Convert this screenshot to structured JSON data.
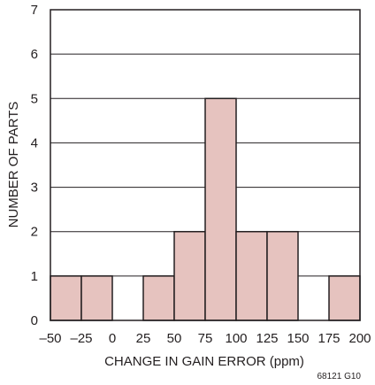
{
  "chart_data": {
    "type": "bar",
    "title": "",
    "xlabel": "CHANGE IN GAIN ERROR (ppm)",
    "ylabel": "NUMBER OF PARTS",
    "bin_edges": [
      -50,
      -25,
      0,
      25,
      50,
      75,
      100,
      125,
      150,
      175,
      200
    ],
    "categories": [
      "-50 to -25",
      "-25 to 0",
      "0 to 25",
      "25 to 50",
      "50 to 75",
      "75 to 100",
      "100 to 125",
      "125 to 150",
      "150 to 175",
      "175 to 200"
    ],
    "values": [
      1,
      1,
      0,
      1,
      2,
      5,
      2,
      2,
      0,
      1
    ],
    "x_tick_labels": [
      "–50",
      "–25",
      "0",
      "25",
      "50",
      "75",
      "100",
      "125",
      "150",
      "175",
      "200"
    ],
    "y_tick_labels": [
      "0",
      "1",
      "2",
      "3",
      "4",
      "5",
      "6",
      "7"
    ],
    "xlim": [
      -50,
      200
    ],
    "ylim": [
      0,
      7
    ],
    "grid": "horizontal",
    "bar_fill": "#e6c3bf",
    "bar_stroke": "#231f20",
    "grid_color": "#231f20",
    "note": "68121 G10"
  }
}
